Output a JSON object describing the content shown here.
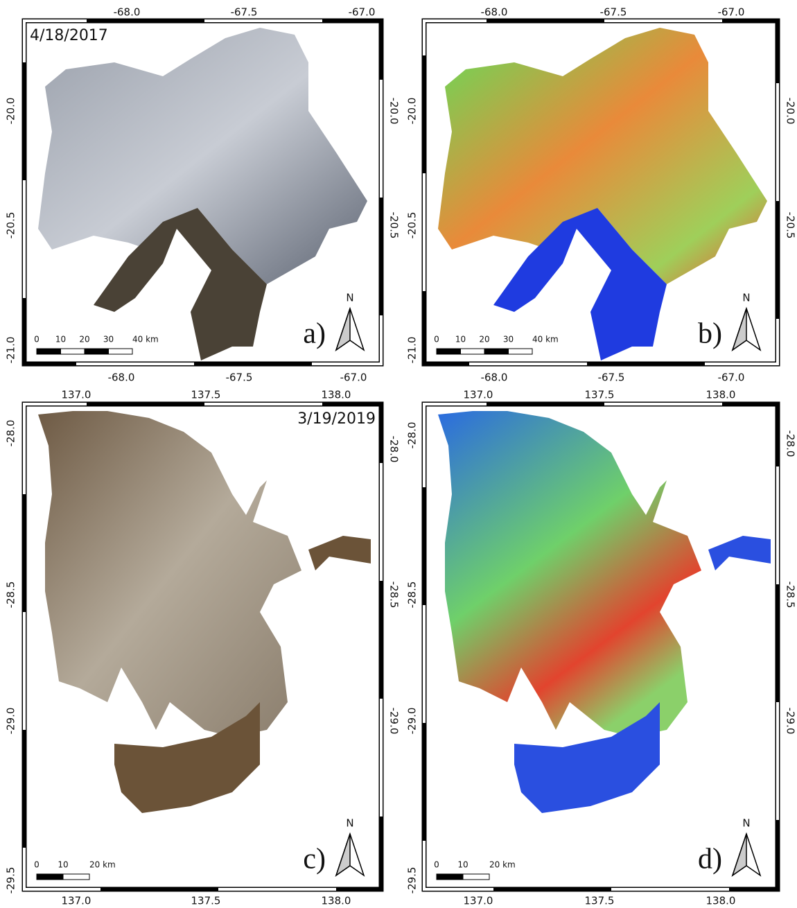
{
  "panels": [
    {
      "label": "a)",
      "date": "4/18/2017",
      "top_ticks": [
        "-68.0",
        "-67.5",
        "-67.0"
      ],
      "bottom_ticks": [
        "-68.0",
        "-67.5",
        "-67.0"
      ],
      "left_ticks": [
        "-20.0",
        "-20.5",
        "-21.0"
      ],
      "right_ticks": [
        "-20.0",
        "-20.5"
      ],
      "scale_labels": [
        "0",
        "10",
        "20",
        "30",
        "40 km"
      ],
      "north": "N"
    },
    {
      "label": "b)",
      "top_ticks": [
        "-68.0",
        "-67.5",
        "-67.0"
      ],
      "bottom_ticks": [
        "-68.0",
        "-67.5",
        "-67.0"
      ],
      "left_ticks": [
        "-20.0",
        "-20.5",
        "-21.0"
      ],
      "right_ticks": [
        "-20.0",
        "-20.5"
      ],
      "scale_labels": [
        "0",
        "10",
        "20",
        "30",
        "40 km"
      ],
      "north": "N"
    },
    {
      "label": "c)",
      "date": "3/19/2019",
      "top_ticks": [
        "137.0",
        "137.5",
        "138.0"
      ],
      "bottom_ticks": [
        "137.0",
        "137.5",
        "138.0"
      ],
      "left_ticks": [
        "-28.0",
        "-28.5",
        "-29.0",
        "-29.5"
      ],
      "right_ticks": [
        "-28.0",
        "-28.5",
        "-29.0"
      ],
      "scale_labels": [
        "0",
        "10",
        "20 km"
      ],
      "north": "N"
    },
    {
      "label": "d)",
      "top_ticks": [
        "137.0",
        "137.5",
        "138.0"
      ],
      "bottom_ticks": [
        "137.0",
        "137.5",
        "138.0"
      ],
      "left_ticks": [
        "-28.0",
        "-28.5",
        "-29.0",
        "-29.5"
      ],
      "right_ticks": [
        "-28.0",
        "-28.5",
        "-29.0"
      ],
      "scale_labels": [
        "0",
        "10",
        "20 km"
      ],
      "north": "N"
    }
  ]
}
